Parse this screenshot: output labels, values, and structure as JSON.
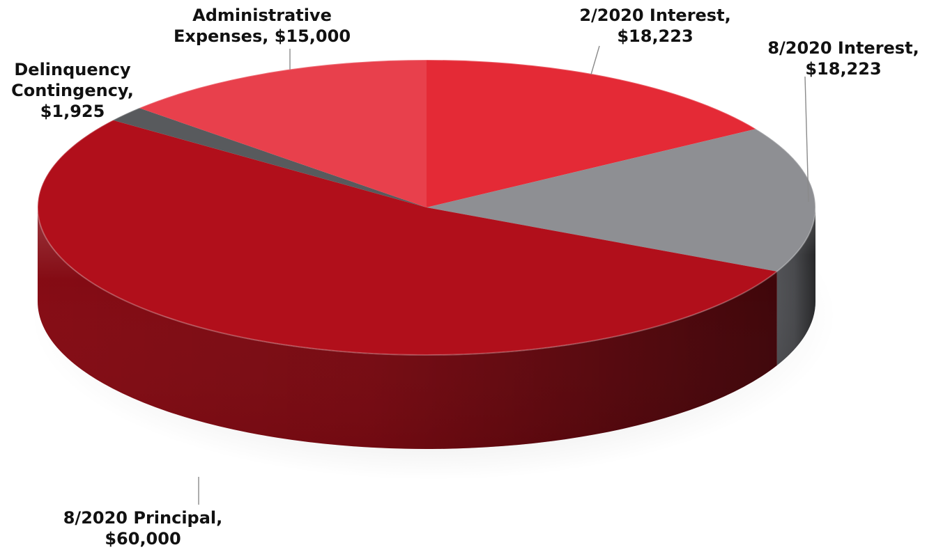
{
  "chart_data": {
    "type": "pie",
    "title": "",
    "slices": [
      {
        "label_lines": [
          "2/2020 Interest,",
          "$18,223"
        ],
        "value": 18223,
        "color": "#e42a36",
        "side_color": "#a81822"
      },
      {
        "label_lines": [
          "8/2020 Interest,",
          "$18,223"
        ],
        "value": 18223,
        "color": "#8e8f93",
        "side_color": "#55565a"
      },
      {
        "label_lines": [
          "8/2020 Principal,",
          "$60,000"
        ],
        "value": 60000,
        "color": "#b10f1b",
        "side_color": "#8c0c15"
      },
      {
        "label_lines": [
          "Delinquency",
          "Contingency,",
          "$1,925"
        ],
        "value": 1925,
        "color": "#585a5d",
        "side_color": "#3b3c3e"
      },
      {
        "label_lines": [
          "Administrative",
          "Expenses, $15,000"
        ],
        "value": 15000,
        "color": "#e8404c",
        "side_color": "#b02a33"
      }
    ],
    "legend": "none",
    "style": "3d"
  }
}
